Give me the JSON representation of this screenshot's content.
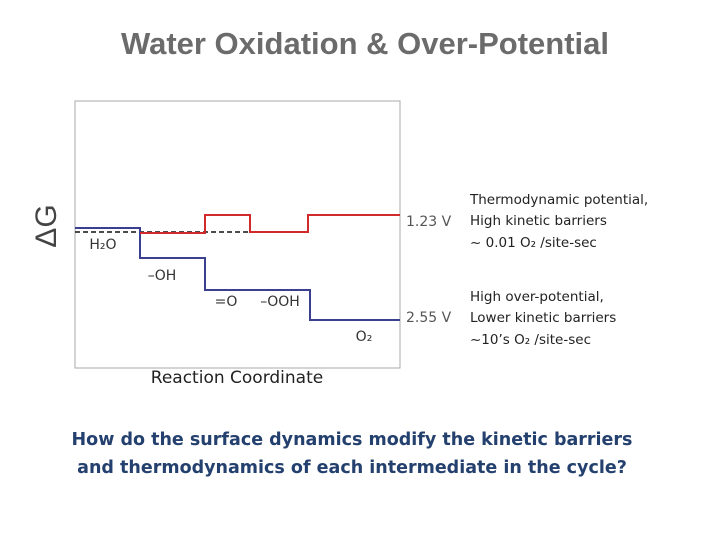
{
  "title": "Water Oxidation & Over-Potential",
  "diagram": {
    "y_axis_label": "ΔG",
    "x_axis_label": "Reaction Coordinate",
    "states": [
      "H₂O",
      "–OH",
      "=O",
      "–OOH",
      "O₂"
    ],
    "potentials": [
      "1.23 V",
      "2.55 V"
    ]
  },
  "notes": [
    [
      "Thermodynamic potential,",
      "High kinetic barriers",
      "~ 0.01 O₂ /site-sec"
    ],
    [
      "High over-potential,",
      "Lower kinetic barriers",
      "~10’s O₂ /site-sec"
    ]
  ],
  "question": [
    "How do the surface dynamics modify the kinetic barriers",
    "and thermodynamics of each intermediate in the cycle?"
  ]
}
